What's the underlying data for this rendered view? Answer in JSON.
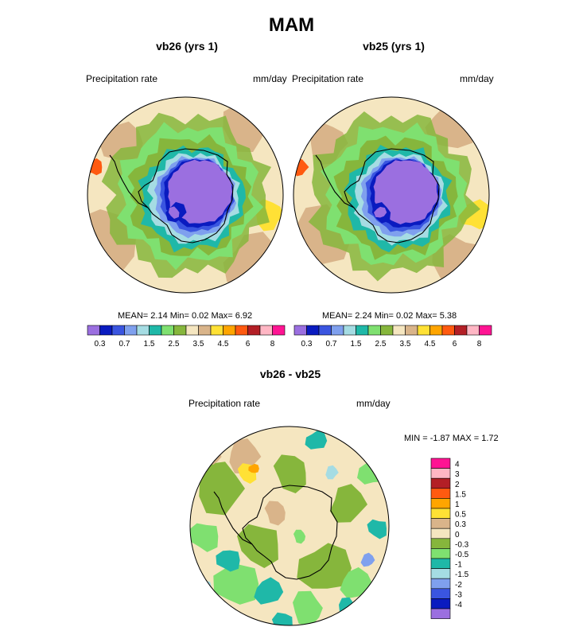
{
  "title": "MAM",
  "chart_data": [
    {
      "type": "heatmap",
      "title": "vb26 (yrs 1)",
      "left_label": "Precipitation rate",
      "units": "mm/day",
      "stats": {
        "mean_label": "MEAN=",
        "mean": "2.14",
        "min_label": "Min=",
        "min": "0.02",
        "max_label": "Max=",
        "max": "6.92"
      },
      "levels": [
        "0.3",
        "0.5",
        "0.7",
        "1",
        "1.5",
        "2",
        "2.5",
        "3",
        "3.5",
        "4",
        "4.5",
        "5",
        "6",
        "7",
        "8"
      ],
      "tick_labels": [
        "0.3",
        "0.7",
        "1.5",
        "2.5",
        "3.5",
        "4.5",
        "6",
        "8"
      ],
      "colors": [
        "#9b6fe0",
        "#0a1bc0",
        "#3a55e0",
        "#7fa0ee",
        "#a5dce3",
        "#1fb8a8",
        "#7fe070",
        "#86b63c",
        "#f5e6c0",
        "#d9b48a",
        "#ffe135",
        "#ffa500",
        "#ff5a10",
        "#b31f26",
        "#ffb6c4",
        "#ff1493"
      ]
    },
    {
      "type": "heatmap",
      "title": "vb25 (yrs 1)",
      "left_label": "Precipitation rate",
      "units": "mm/day",
      "stats": {
        "mean_label": "MEAN=",
        "mean": "2.24",
        "min_label": "Min=",
        "min": "0.02",
        "max_label": "Max=",
        "max": "5.38"
      },
      "levels": [
        "0.3",
        "0.5",
        "0.7",
        "1",
        "1.5",
        "2",
        "2.5",
        "3",
        "3.5",
        "4",
        "4.5",
        "5",
        "6",
        "7",
        "8"
      ],
      "tick_labels": [
        "0.3",
        "0.7",
        "1.5",
        "2.5",
        "3.5",
        "4.5",
        "6",
        "8"
      ],
      "colors": [
        "#9b6fe0",
        "#0a1bc0",
        "#3a55e0",
        "#7fa0ee",
        "#a5dce3",
        "#1fb8a8",
        "#7fe070",
        "#86b63c",
        "#f5e6c0",
        "#d9b48a",
        "#ffe135",
        "#ffa500",
        "#ff5a10",
        "#b31f26",
        "#ffb6c4",
        "#ff1493"
      ]
    },
    {
      "type": "heatmap",
      "title": "vb26 - vb25",
      "left_label": "Precipitation rate",
      "units": "mm/day",
      "stats": {
        "min_label": "MIN =",
        "min": "-1.87",
        "max_label": "MAX =",
        "max": "1.72"
      },
      "tick_labels": [
        "4",
        "3",
        "2",
        "1.5",
        "1",
        "0.5",
        "0.3",
        "0",
        "-0.3",
        "-0.5",
        "-1",
        "-1.5",
        "-2",
        "-3",
        "-4"
      ],
      "colors": [
        "#ff1493",
        "#ffb6c4",
        "#b31f26",
        "#ff5a10",
        "#ffa500",
        "#ffe135",
        "#d9b48a",
        "#f5e6c0",
        "#86b63c",
        "#7fe070",
        "#1fb8a8",
        "#a5dce3",
        "#7fa0ee",
        "#3a55e0",
        "#0a1bc0",
        "#9b6fe0"
      ]
    }
  ]
}
